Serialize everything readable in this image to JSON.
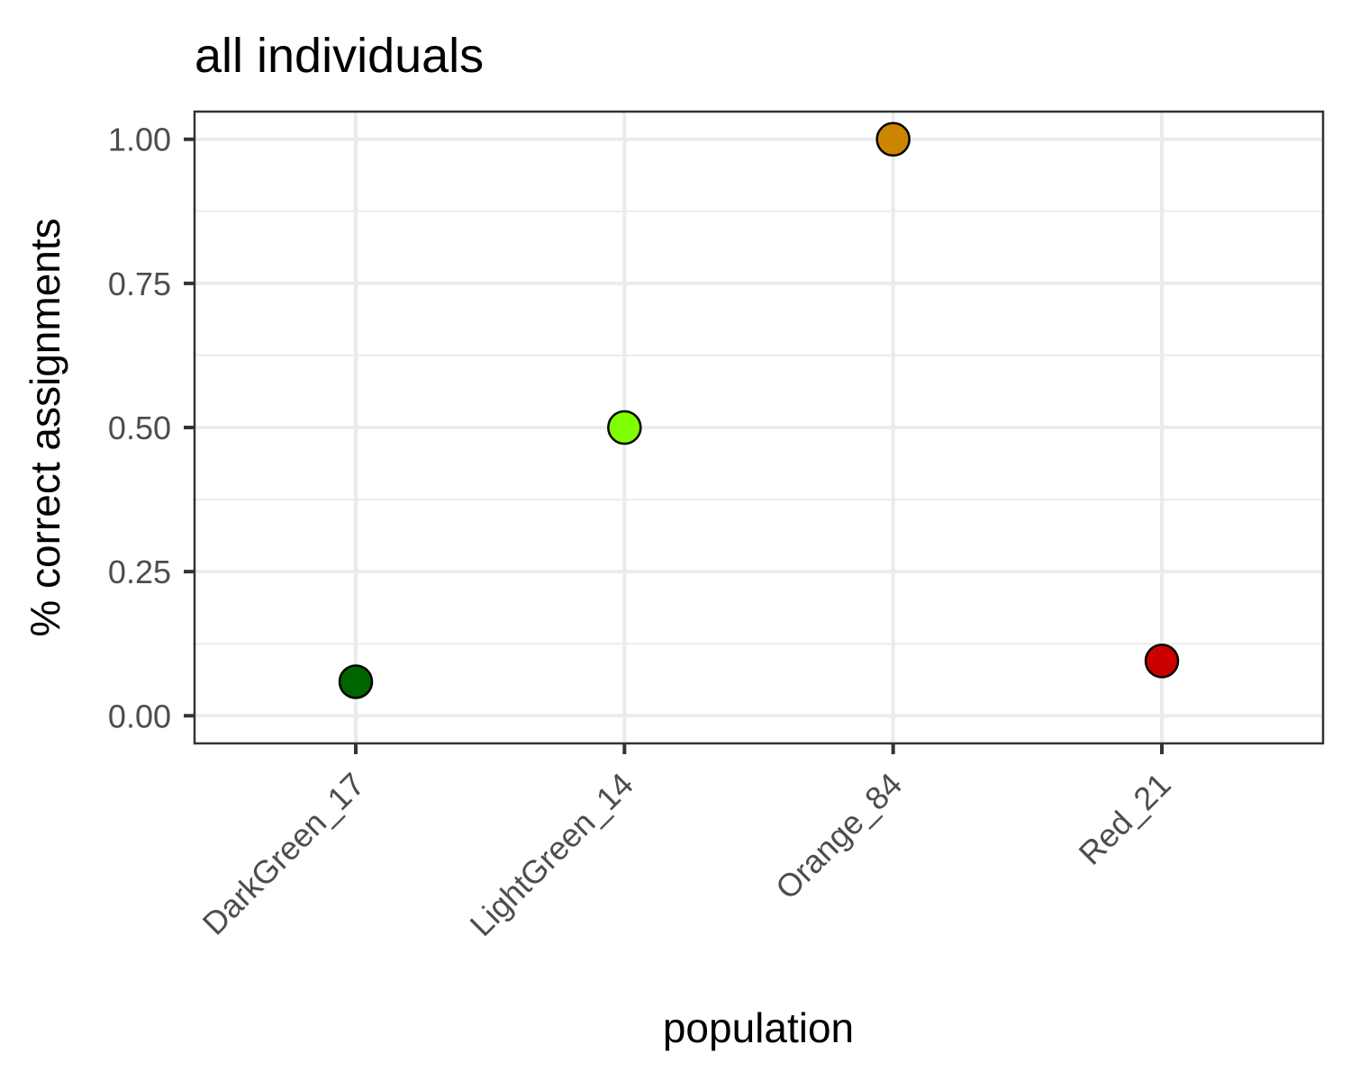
{
  "chart_data": {
    "type": "scatter",
    "title": "all individuals",
    "xlabel": "population",
    "ylabel": "% correct assignments",
    "categories": [
      "DarkGreen_17",
      "LightGreen_14",
      "Orange_84",
      "Red_21"
    ],
    "values": [
      0.059,
      0.5,
      1.0,
      0.095
    ],
    "point_colors": [
      "#006400",
      "#7fff00",
      "#cd8500",
      "#cd0000"
    ],
    "ylim": [
      -0.048,
      1.048
    ],
    "yticks": [
      0.0,
      0.25,
      0.5,
      0.75,
      1.0
    ],
    "ytick_labels": [
      "0.00",
      "0.25",
      "0.50",
      "0.75",
      "1.00"
    ],
    "grid": true,
    "legend": "none"
  }
}
